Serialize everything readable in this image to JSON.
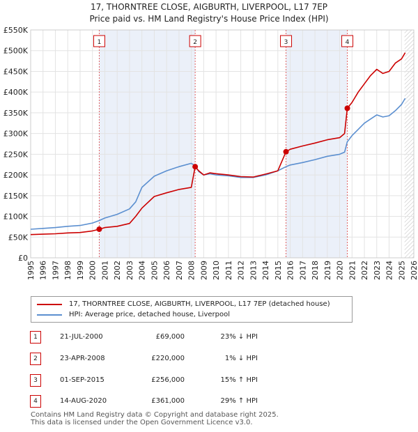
{
  "chart_data": {
    "type": "line",
    "title": "17, THORNTREE CLOSE, AIGBURTH, LIVERPOOL, L17 7EP",
    "subtitle": "Price paid vs. HM Land Registry's House Price Index (HPI)",
    "x_ticks": [
      "1995",
      "1996",
      "1997",
      "1998",
      "1999",
      "2000",
      "2001",
      "2002",
      "2003",
      "2004",
      "2005",
      "2006",
      "2007",
      "2008",
      "2009",
      "2010",
      "2011",
      "2012",
      "2013",
      "2014",
      "2015",
      "2016",
      "2017",
      "2018",
      "2019",
      "2020",
      "2021",
      "2022",
      "2023",
      "2024",
      "2025",
      "2026"
    ],
    "y_ticks": [
      "£0",
      "£50K",
      "£100K",
      "£150K",
      "£200K",
      "£250K",
      "£300K",
      "£350K",
      "£400K",
      "£450K",
      "£500K",
      "£550K"
    ],
    "xlim": [
      1995,
      2026
    ],
    "ylim": [
      0,
      550000
    ],
    "series": [
      {
        "name": "17, THORNTREE CLOSE, AIGBURTH, LIVERPOOL, L17 7EP (detached house)",
        "color": "#cc0000",
        "x": [
          1995.0,
          1996.0,
          1997.0,
          1998.0,
          1999.0,
          2000.0,
          2000.55,
          2001.0,
          2002.0,
          2003.0,
          2003.5,
          2004.0,
          2005.0,
          2006.0,
          2007.0,
          2008.0,
          2008.31,
          2008.6,
          2009.0,
          2009.5,
          2010.0,
          2011.0,
          2012.0,
          2013.0,
          2014.0,
          2015.0,
          2015.66,
          2016.0,
          2017.0,
          2018.0,
          2019.0,
          2020.0,
          2020.4,
          2020.62,
          2021.0,
          2021.5,
          2022.0,
          2022.5,
          2023.0,
          2023.5,
          2024.0,
          2024.5,
          2025.0,
          2025.3
        ],
        "y": [
          56000,
          57000,
          58000,
          60000,
          61000,
          65000,
          69000,
          73000,
          76000,
          83000,
          100000,
          120000,
          148000,
          157000,
          165000,
          170000,
          220000,
          210000,
          200000,
          205000,
          203000,
          200000,
          196000,
          195000,
          202000,
          210000,
          256000,
          262000,
          270000,
          277000,
          285000,
          290000,
          300000,
          361000,
          375000,
          400000,
          420000,
          440000,
          455000,
          445000,
          450000,
          470000,
          480000,
          495000
        ]
      },
      {
        "name": "HPI: Average price, detached house, Liverpool",
        "color": "#5b8fd0",
        "x": [
          1995.0,
          1996.0,
          1997.0,
          1998.0,
          1999.0,
          2000.0,
          2000.55,
          2001.0,
          2002.0,
          2003.0,
          2003.5,
          2004.0,
          2005.0,
          2006.0,
          2007.0,
          2008.0,
          2008.31,
          2008.6,
          2009.0,
          2009.5,
          2010.0,
          2011.0,
          2012.0,
          2013.0,
          2014.0,
          2015.0,
          2015.66,
          2016.0,
          2017.0,
          2018.0,
          2019.0,
          2020.0,
          2020.4,
          2020.62,
          2021.0,
          2021.5,
          2022.0,
          2022.5,
          2023.0,
          2023.5,
          2024.0,
          2024.5,
          2025.0,
          2025.3
        ],
        "y": [
          69000,
          71000,
          73000,
          76000,
          78000,
          84000,
          90000,
          96000,
          105000,
          118000,
          135000,
          170000,
          197000,
          210000,
          220000,
          228000,
          222000,
          208000,
          200000,
          203000,
          200000,
          198000,
          194000,
          194000,
          200000,
          210000,
          220000,
          224000,
          230000,
          237000,
          245000,
          250000,
          255000,
          280000,
          295000,
          310000,
          325000,
          335000,
          345000,
          340000,
          343000,
          355000,
          370000,
          385000
        ]
      }
    ],
    "transactions": [
      {
        "label": "1",
        "x": 2000.55,
        "y": 69000
      },
      {
        "label": "2",
        "x": 2008.31,
        "y": 220000
      },
      {
        "label": "3",
        "x": 2015.66,
        "y": 256000
      },
      {
        "label": "4",
        "x": 2020.62,
        "y": 361000
      }
    ],
    "table": [
      {
        "label": "1",
        "date": "21-JUL-2000",
        "price": "£69,000",
        "hpi": "23% ↓ HPI"
      },
      {
        "label": "2",
        "date": "23-APR-2008",
        "price": "£220,000",
        "hpi": "1% ↓ HPI"
      },
      {
        "label": "3",
        "date": "01-SEP-2015",
        "price": "£256,000",
        "hpi": "15% ↑ HPI"
      },
      {
        "label": "4",
        "date": "14-AUG-2020",
        "price": "£361,000",
        "hpi": "29% ↑ HPI"
      }
    ]
  },
  "footer": {
    "line1": "Contains HM Land Registry data © Copyright and database right 2025.",
    "line2": "This data is licensed under the Open Government Licence v3.0."
  }
}
